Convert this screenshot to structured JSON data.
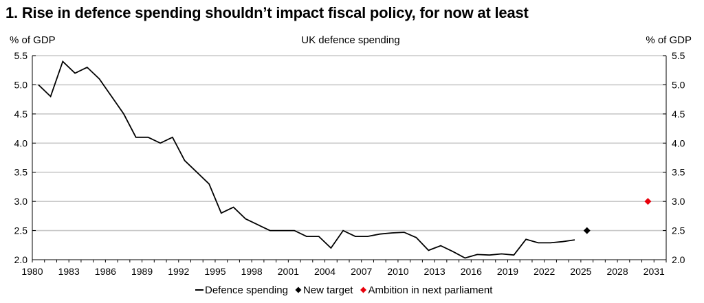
{
  "title": "1. Rise in defence spending shouldn’t impact fiscal policy, for now at least",
  "chart_data": {
    "type": "line",
    "subtitle": "UK defence spending",
    "ylabel_left": "% of GDP",
    "ylabel_right": "% of GDP",
    "xlim": [
      1980,
      2032
    ],
    "ylim": [
      2.0,
      5.5
    ],
    "x_ticks": [
      1980,
      1983,
      1986,
      1989,
      1992,
      1995,
      1998,
      2001,
      2004,
      2007,
      2010,
      2013,
      2016,
      2019,
      2022,
      2025,
      2028,
      2031
    ],
    "y_ticks": [
      "2.0",
      "2.5",
      "3.0",
      "3.5",
      "4.0",
      "4.5",
      "5.0",
      "5.5"
    ],
    "grid": true,
    "legend_position": "bottom",
    "series": [
      {
        "name": "Defence spending",
        "color": "#000000",
        "marker": "line",
        "points": [
          [
            1980.5,
            5.0
          ],
          [
            1981.5,
            4.8
          ],
          [
            1982.5,
            5.4
          ],
          [
            1983.5,
            5.2
          ],
          [
            1984.5,
            5.3
          ],
          [
            1985.5,
            5.1
          ],
          [
            1986.5,
            4.8
          ],
          [
            1987.5,
            4.5
          ],
          [
            1988.5,
            4.1
          ],
          [
            1989.5,
            4.1
          ],
          [
            1990.5,
            4.0
          ],
          [
            1991.5,
            4.1
          ],
          [
            1992.5,
            3.7
          ],
          [
            1993.5,
            3.5
          ],
          [
            1994.5,
            3.3
          ],
          [
            1995.5,
            2.8
          ],
          [
            1996.5,
            2.9
          ],
          [
            1997.5,
            2.7
          ],
          [
            1998.5,
            2.6
          ],
          [
            1999.5,
            2.5
          ],
          [
            2000.5,
            2.5
          ],
          [
            2001.5,
            2.5
          ],
          [
            2002.5,
            2.4
          ],
          [
            2003.5,
            2.4
          ],
          [
            2004.5,
            2.2
          ],
          [
            2005.5,
            2.5
          ],
          [
            2006.5,
            2.4
          ],
          [
            2007.5,
            2.4
          ],
          [
            2008.5,
            2.44
          ],
          [
            2009.5,
            2.46
          ],
          [
            2010.5,
            2.47
          ],
          [
            2011.5,
            2.38
          ],
          [
            2012.5,
            2.16
          ],
          [
            2013.5,
            2.24
          ],
          [
            2014.5,
            2.14
          ],
          [
            2015.5,
            2.03
          ],
          [
            2016.5,
            2.09
          ],
          [
            2017.5,
            2.08
          ],
          [
            2018.5,
            2.1
          ],
          [
            2019.5,
            2.08
          ],
          [
            2020.5,
            2.35
          ],
          [
            2021.5,
            2.29
          ],
          [
            2022.5,
            2.29
          ],
          [
            2023.5,
            2.31
          ],
          [
            2024.5,
            2.34
          ]
        ]
      },
      {
        "name": "New target",
        "color": "#000000",
        "marker": "diamond",
        "points": [
          [
            2025.5,
            2.5
          ]
        ]
      },
      {
        "name": "Ambition in next parliament",
        "color": "#e8000b",
        "marker": "diamond",
        "points": [
          [
            2030.5,
            3.0
          ]
        ]
      }
    ]
  }
}
